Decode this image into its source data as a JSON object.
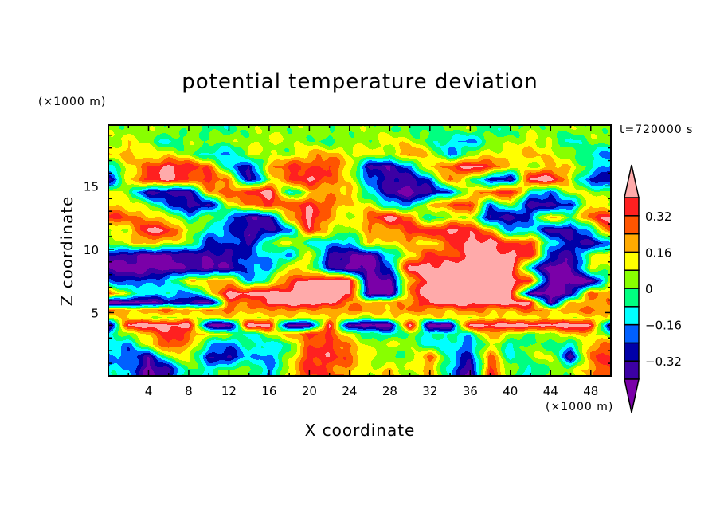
{
  "chart_data": {
    "type": "heatmap",
    "title": "potential temperature deviation",
    "xlabel": "X coordinate",
    "ylabel": "Z coordinate",
    "x_unit_label": "(×1000 m)",
    "y_unit_label": "(×1000 m)",
    "time_label": "t=720000 s",
    "xlim": [
      0,
      50
    ],
    "ylim": [
      0,
      19.8
    ],
    "x_ticks": [
      4,
      8,
      12,
      16,
      20,
      24,
      28,
      32,
      36,
      40,
      44,
      48
    ],
    "y_ticks": [
      5,
      10,
      15
    ],
    "colorbar": {
      "levels": [
        -0.4,
        -0.32,
        -0.24,
        -0.16,
        -0.08,
        0,
        0.08,
        0.16,
        0.24,
        0.32,
        0.4
      ],
      "labels": [
        "-0.32",
        "-0.16",
        "0",
        "0.16",
        "0.32"
      ],
      "label_values": [
        -0.32,
        -0.16,
        0,
        0.16,
        0.32
      ],
      "colors": [
        "#7a00a8",
        "#3c00a4",
        "#0000a8",
        "#0060ff",
        "#00ffff",
        "#00ff80",
        "#88ff00",
        "#ffff00",
        "#ffaa00",
        "#ff5500",
        "#ff2020",
        "#ffaaaa"
      ],
      "extend": "both"
    },
    "grid": {
      "x": [
        0,
        2,
        4,
        6,
        8,
        10,
        12,
        14,
        16,
        18,
        20,
        22,
        24,
        26,
        28,
        30,
        32,
        34,
        36,
        38,
        40,
        42,
        44,
        46,
        48,
        50
      ],
      "z": [
        19.5,
        18.5,
        17.5,
        16.5,
        15.5,
        14.5,
        13.5,
        12.5,
        11.5,
        10.5,
        9.5,
        8.5,
        7.5,
        6.5,
        5.8,
        5.2,
        4.6,
        4.0,
        3.3,
        2.5,
        1.5,
        0.5
      ],
      "values": [
        [
          0.04,
          0.04,
          0.04,
          0.04,
          0.04,
          -0.04,
          -0.04,
          0.04,
          0.04,
          0.04,
          0.04,
          0.04,
          0.04,
          0.04,
          0.04,
          -0.04,
          -0.04,
          0.04,
          0.04,
          -0.04,
          -0.04,
          0.04,
          0.04,
          0.04,
          0.04,
          0.04
        ],
        [
          0.04,
          0.12,
          0.04,
          -0.12,
          0.04,
          0.04,
          0.04,
          0.04,
          0.12,
          0.04,
          0.04,
          -0.04,
          0.04,
          0.04,
          0.12,
          0.12,
          -0.04,
          -0.12,
          -0.2,
          0.04,
          0.04,
          0.12,
          0.04,
          -0.12,
          0.04,
          0.04
        ],
        [
          0.12,
          0.2,
          0.12,
          0.12,
          0.04,
          -0.12,
          -0.2,
          0.12,
          0.04,
          0.04,
          0.2,
          0.2,
          0.12,
          0.12,
          0.04,
          0.28,
          0.12,
          -0.2,
          0.04,
          0.12,
          0.12,
          0.2,
          0.12,
          0.04,
          -0.12,
          -0.2
        ],
        [
          -0.12,
          0.12,
          0.28,
          0.45,
          0.36,
          0.28,
          -0.12,
          -0.36,
          0.2,
          0.36,
          0.28,
          0.36,
          0.12,
          -0.36,
          -0.36,
          -0.2,
          0.2,
          0.28,
          0.45,
          0.36,
          0.12,
          0.04,
          0.2,
          0.12,
          -0.04,
          -0.2
        ],
        [
          -0.36,
          0.12,
          0.36,
          0.45,
          0.28,
          0.36,
          0.2,
          -0.36,
          0.04,
          0.28,
          0.45,
          0.28,
          0.12,
          -0.2,
          -0.36,
          -0.36,
          -0.2,
          0.28,
          0.04,
          -0.28,
          -0.36,
          0.45,
          0.45,
          0.12,
          -0.28,
          -0.36
        ],
        [
          0.12,
          0.04,
          -0.36,
          -0.36,
          -0.36,
          0.2,
          0.28,
          0.36,
          0.45,
          -0.12,
          0.12,
          0.2,
          0.2,
          -0.12,
          -0.36,
          -0.45,
          -0.36,
          -0.2,
          0.12,
          0.28,
          0.45,
          -0.12,
          -0.2,
          0.12,
          0.04,
          0.04
        ],
        [
          0.2,
          0.12,
          0.04,
          -0.2,
          -0.36,
          -0.36,
          0.12,
          0.2,
          0.36,
          0.28,
          0.36,
          0.28,
          0.12,
          0.12,
          -0.12,
          -0.2,
          0.2,
          0.28,
          0.36,
          -0.2,
          0.04,
          -0.36,
          -0.36,
          -0.28,
          0.2,
          0.04
        ],
        [
          0.36,
          0.28,
          0.2,
          0.12,
          -0.12,
          0.12,
          -0.2,
          -0.36,
          -0.36,
          0.2,
          0.45,
          0.2,
          0.04,
          0.28,
          0.45,
          0.28,
          -0.12,
          0.04,
          0.12,
          -0.36,
          -0.36,
          -0.2,
          0.2,
          0.04,
          0.28,
          0.45
        ],
        [
          0.04,
          0.12,
          0.45,
          0.36,
          0.12,
          -0.12,
          -0.2,
          -0.36,
          -0.36,
          -0.2,
          0.36,
          0.12,
          0.04,
          0.2,
          0.2,
          0.36,
          0.36,
          0.45,
          0.36,
          0.2,
          -0.2,
          -0.12,
          -0.36,
          -0.36,
          -0.12,
          0.36
        ],
        [
          0.04,
          0.12,
          0.2,
          0.12,
          0.04,
          -0.28,
          -0.2,
          -0.36,
          0.04,
          0.12,
          -0.12,
          -0.12,
          -0.2,
          0.2,
          0.12,
          0.2,
          0.12,
          0.28,
          0.45,
          0.45,
          0.28,
          0.36,
          -0.12,
          -0.28,
          -0.36,
          -0.2
        ],
        [
          -0.36,
          -0.36,
          -0.45,
          -0.45,
          -0.36,
          -0.36,
          -0.36,
          -0.2,
          -0.12,
          -0.2,
          0.2,
          -0.36,
          -0.36,
          -0.45,
          -0.12,
          0.12,
          0.36,
          0.28,
          0.45,
          0.45,
          0.45,
          0.36,
          -0.28,
          -0.36,
          0.04,
          0.2
        ],
        [
          -0.45,
          -0.45,
          -0.45,
          -0.45,
          -0.36,
          -0.45,
          -0.36,
          -0.2,
          -0.2,
          0.2,
          0.04,
          -0.28,
          -0.45,
          -0.45,
          -0.2,
          0.45,
          0.45,
          0.45,
          0.45,
          0.45,
          0.45,
          -0.2,
          -0.45,
          -0.45,
          0.12,
          0.04
        ],
        [
          -0.2,
          -0.28,
          -0.2,
          -0.12,
          0.12,
          0.2,
          0.2,
          -0.2,
          0.04,
          0.28,
          0.45,
          0.45,
          0.45,
          -0.45,
          -0.45,
          0.2,
          0.45,
          0.45,
          0.45,
          0.45,
          0.45,
          0.36,
          -0.45,
          -0.45,
          -0.45,
          0.04
        ],
        [
          0.28,
          0.04,
          -0.12,
          -0.12,
          -0.2,
          0.04,
          0.45,
          0.45,
          0.45,
          0.45,
          0.45,
          0.45,
          0.45,
          -0.45,
          -0.45,
          0.28,
          0.45,
          0.45,
          0.45,
          0.45,
          0.45,
          -0.45,
          -0.45,
          -0.36,
          0.28,
          0.2
        ],
        [
          -0.45,
          -0.45,
          -0.45,
          -0.28,
          -0.36,
          -0.45,
          0.28,
          0.2,
          0.45,
          0.45,
          0.45,
          0.45,
          0.2,
          0.2,
          0.2,
          0.2,
          0.45,
          0.45,
          0.45,
          0.45,
          0.45,
          0.45,
          -0.45,
          0.2,
          0.2,
          0.2
        ],
        [
          0.28,
          0.2,
          0.2,
          0.28,
          0.2,
          0.2,
          0.28,
          0.2,
          0.2,
          0.28,
          0.2,
          0.2,
          0.28,
          0.2,
          0.2,
          0.28,
          0.2,
          0.2,
          0.28,
          0.2,
          0.2,
          0.28,
          0.2,
          0.2,
          0.28,
          0.2
        ],
        [
          0.12,
          0.12,
          0.12,
          0.04,
          0.12,
          0.12,
          0.12,
          0.12,
          0.12,
          0.12,
          0.12,
          0.12,
          0.12,
          0.04,
          0.12,
          0.12,
          0.12,
          0.12,
          0.12,
          0.12,
          0.12,
          0.12,
          0.12,
          0.12,
          0.12,
          0.12
        ],
        [
          -0.45,
          0.45,
          0.45,
          0.45,
          0.45,
          -0.45,
          -0.45,
          0.45,
          0.45,
          -0.45,
          -0.45,
          0.45,
          -0.45,
          -0.45,
          -0.45,
          0.45,
          -0.45,
          -0.45,
          0.45,
          0.45,
          0.45,
          0.45,
          0.45,
          0.45,
          0.45,
          -0.45
        ],
        [
          -0.12,
          0.04,
          0.2,
          0.36,
          0.28,
          0.12,
          0.04,
          -0.12,
          0.04,
          0.2,
          0.36,
          0.28,
          0.12,
          -0.04,
          -0.12,
          0.04,
          -0.12,
          -0.04,
          -0.12,
          0.2,
          0.12,
          -0.04,
          0.04,
          0.2,
          0.12,
          -0.04
        ],
        [
          -0.04,
          -0.2,
          0.12,
          0.36,
          0.2,
          -0.12,
          -0.2,
          -0.04,
          -0.12,
          -0.04,
          0.28,
          0.36,
          0.2,
          0.04,
          0.12,
          0.04,
          -0.12,
          -0.12,
          -0.2,
          0.12,
          -0.12,
          0.04,
          -0.04,
          -0.12,
          0.2,
          0.28
        ],
        [
          -0.2,
          -0.2,
          -0.36,
          0.04,
          0.12,
          -0.28,
          -0.36,
          -0.12,
          -0.2,
          0.04,
          0.36,
          0.36,
          0.28,
          0.12,
          -0.04,
          0.04,
          0.28,
          -0.12,
          -0.28,
          0.28,
          -0.12,
          0.04,
          0.12,
          -0.36,
          0.28,
          0.36
        ],
        [
          -0.12,
          -0.12,
          -0.45,
          -0.36,
          0.04,
          -0.12,
          0.04,
          0.04,
          -0.2,
          0.12,
          0.36,
          0.28,
          0.2,
          0.04,
          0.2,
          0.04,
          0.2,
          -0.12,
          -0.45,
          0.36,
          0.04,
          -0.12,
          0.04,
          0.04,
          0.2,
          0.36
        ]
      ]
    }
  }
}
